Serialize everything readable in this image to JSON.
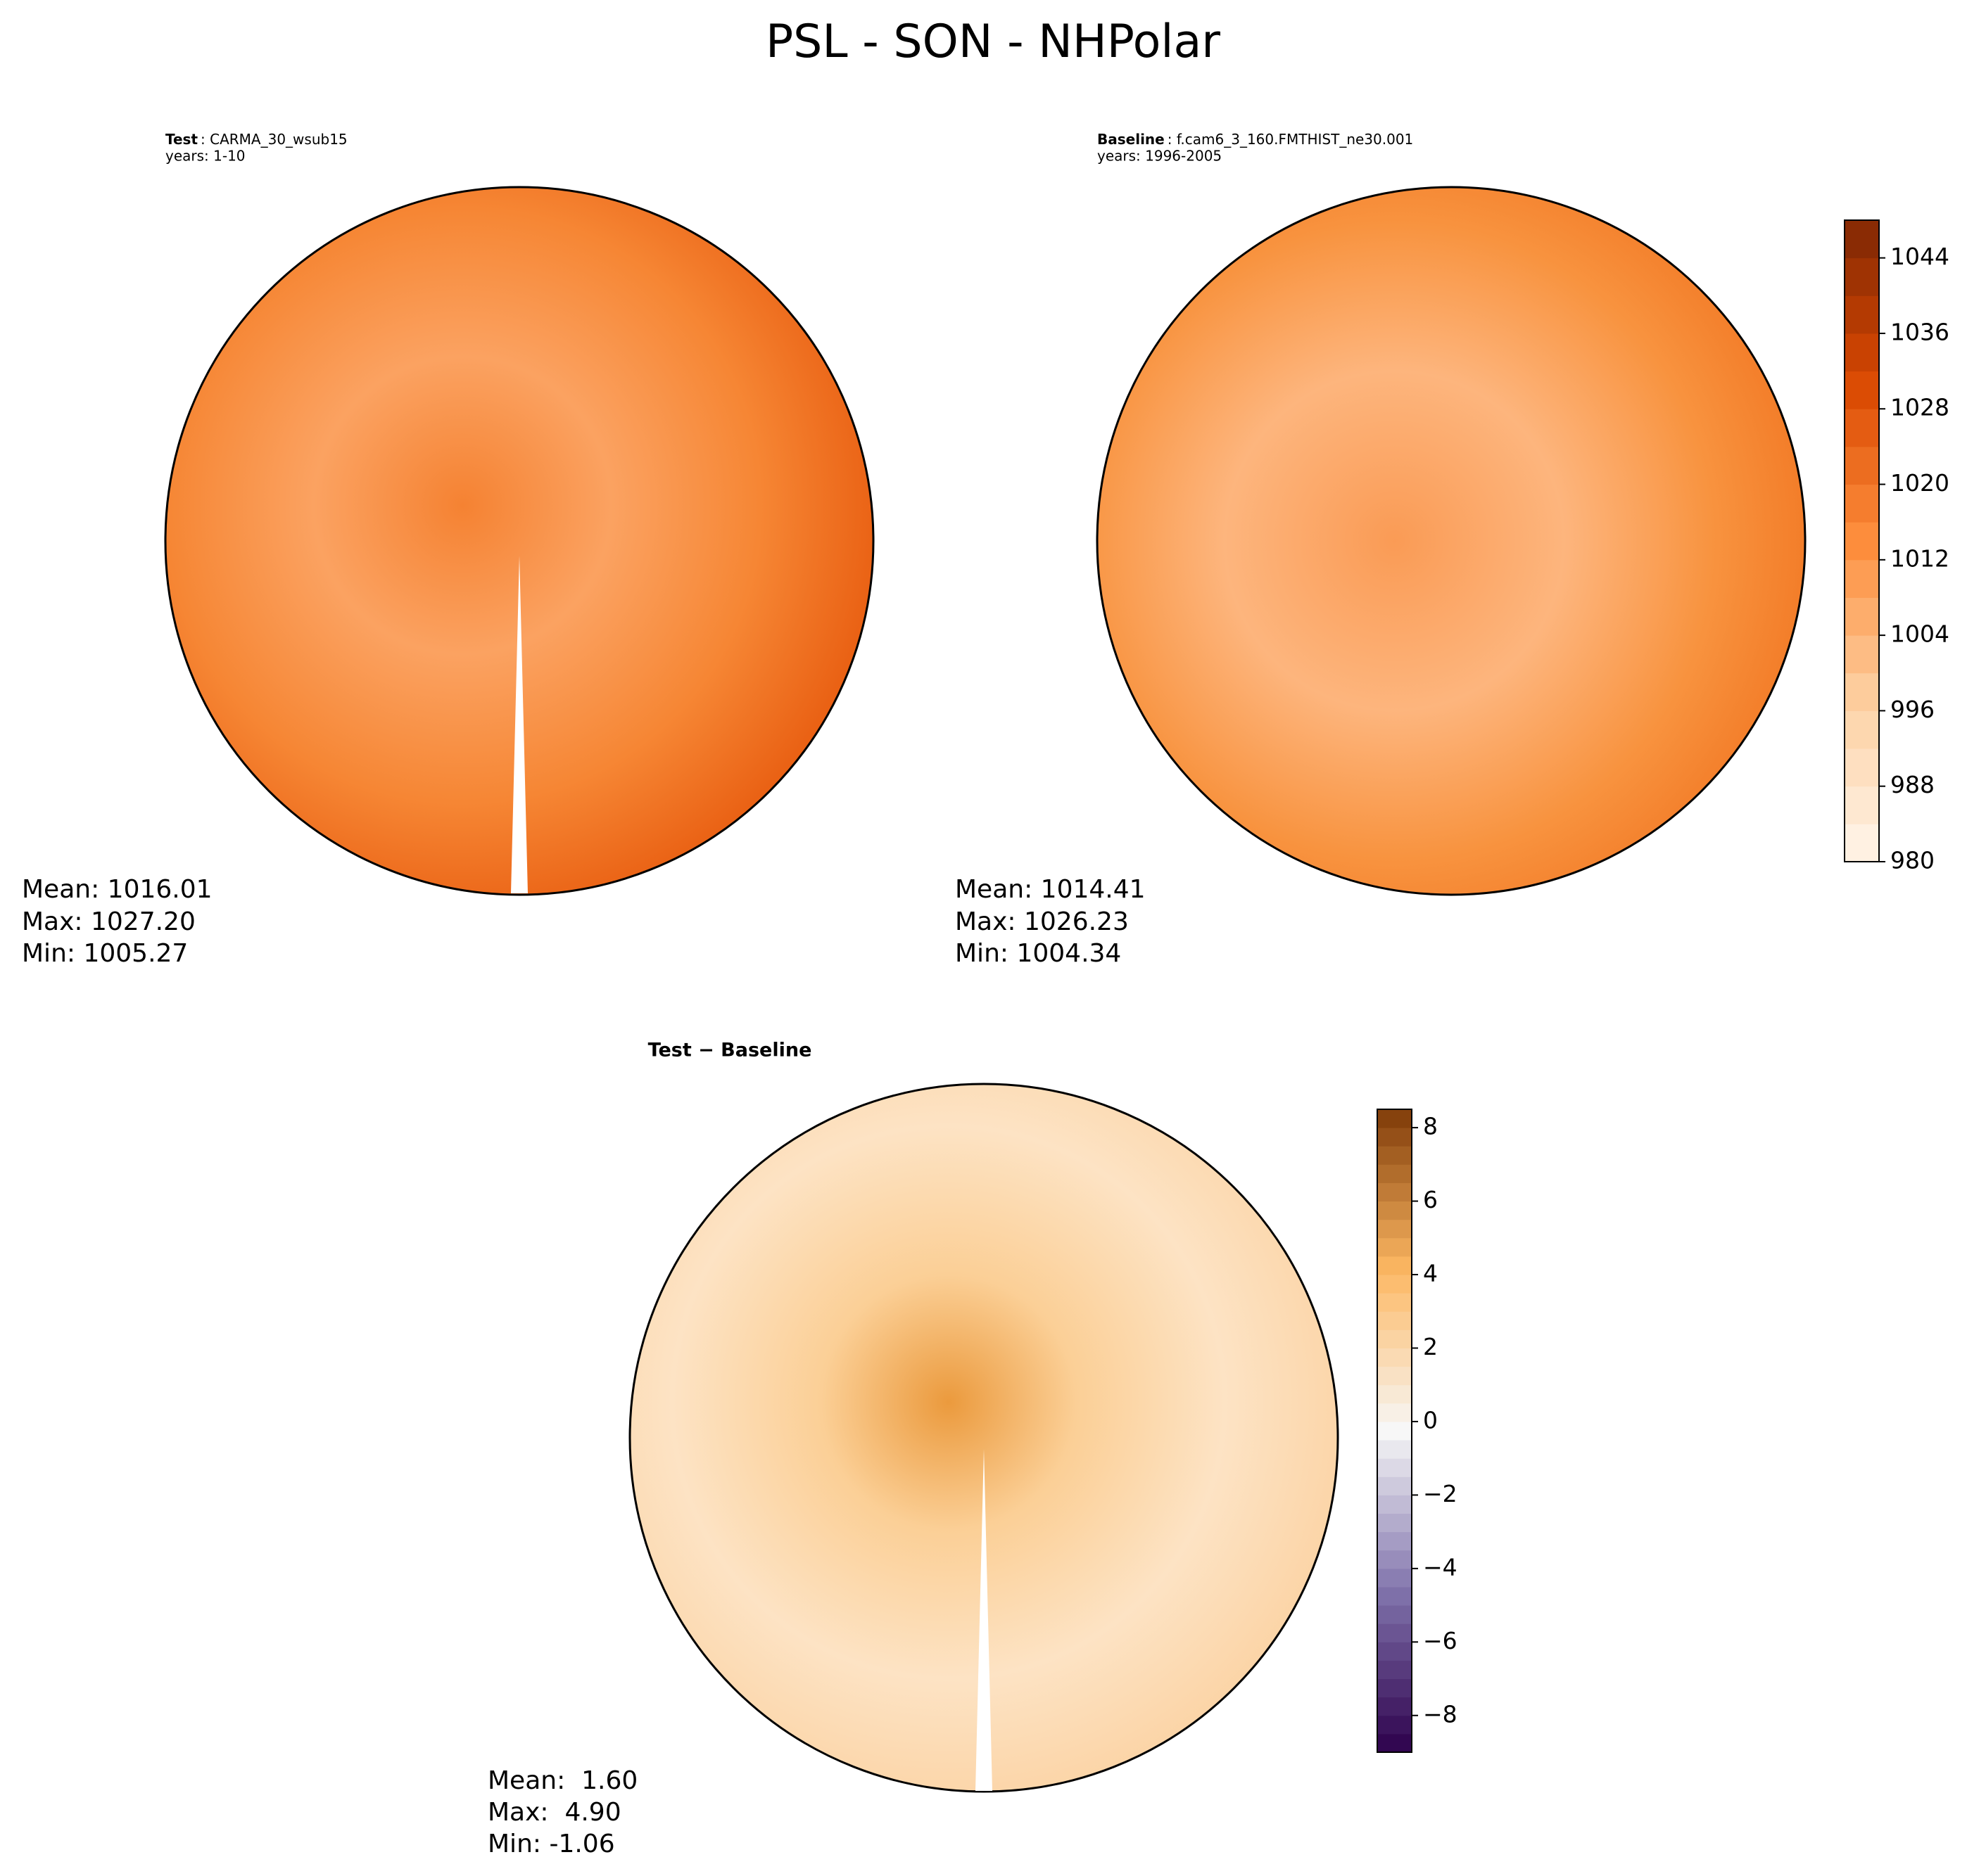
{
  "title": "PSL - SON - NHPolar",
  "panels": [
    {
      "label": "Test",
      "case": ": CARMA_30_wsub15",
      "years": "years: 1-10",
      "stats": [
        "Mean: 1016.01",
        "Max: 1027.20",
        "Min: 1005.27"
      ]
    },
    {
      "label": "Baseline",
      "case": ": f.cam6_3_160.FMTHIST_ne30.001",
      "years": "years: 1996-2005",
      "stats": [
        "Mean: 1014.41",
        "Max: 1026.23",
        "Min: 1004.34"
      ]
    },
    {
      "label": "Test − Baseline",
      "stats": [
        "Mean:  1.60",
        "Max:  4.90",
        "Min: -1.06"
      ]
    }
  ],
  "colorbars": [
    {
      "lim": [
        980,
        1048
      ],
      "step": 4,
      "colors": [
        "#fff5eb",
        "#fdd0a2",
        "#fd8d3c",
        "#d94801",
        "#7f2704"
      ],
      "ticks": [
        980,
        988,
        996,
        1004,
        1012,
        1020,
        1028,
        1036,
        1044
      ]
    },
    {
      "lim": [
        -9,
        8.5
      ],
      "step": 0.5,
      "colors": [
        "#2d004b",
        "#8073ac",
        "#f7f7f7",
        "#fdb863",
        "#7f3b08"
      ],
      "ticks": [
        {
          "value": -8,
          "label": "−8"
        },
        {
          "value": -6,
          "label": "−6"
        },
        {
          "value": -4,
          "label": "−4"
        },
        {
          "value": -2,
          "label": "−2"
        },
        0,
        2,
        4,
        6,
        8
      ]
    }
  ]
}
